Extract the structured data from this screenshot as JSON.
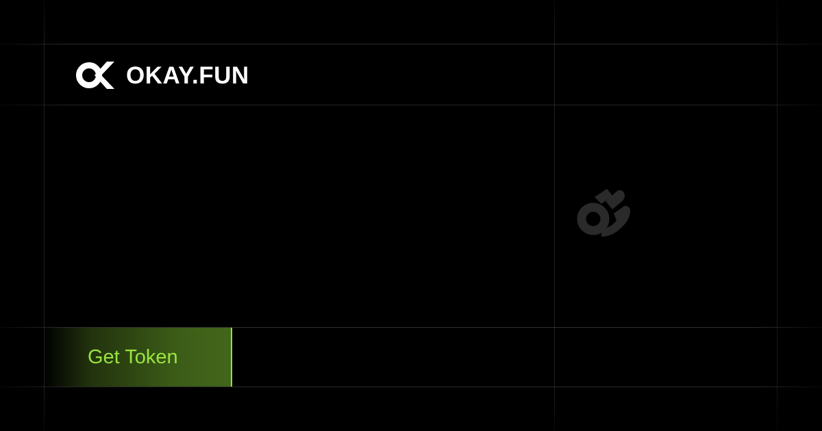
{
  "brand": {
    "name": "OKAY.FUN",
    "logo_icon": "ok-logo-icon"
  },
  "hero": {
    "icon": "ok-hand-icon"
  },
  "cta": {
    "label": "Get Token"
  },
  "colors": {
    "background": "#000000",
    "accent": "#9ae43e",
    "cta_fill": "#3b5c17",
    "hero_icon": "#2a2a2a",
    "text": "#ffffff"
  }
}
